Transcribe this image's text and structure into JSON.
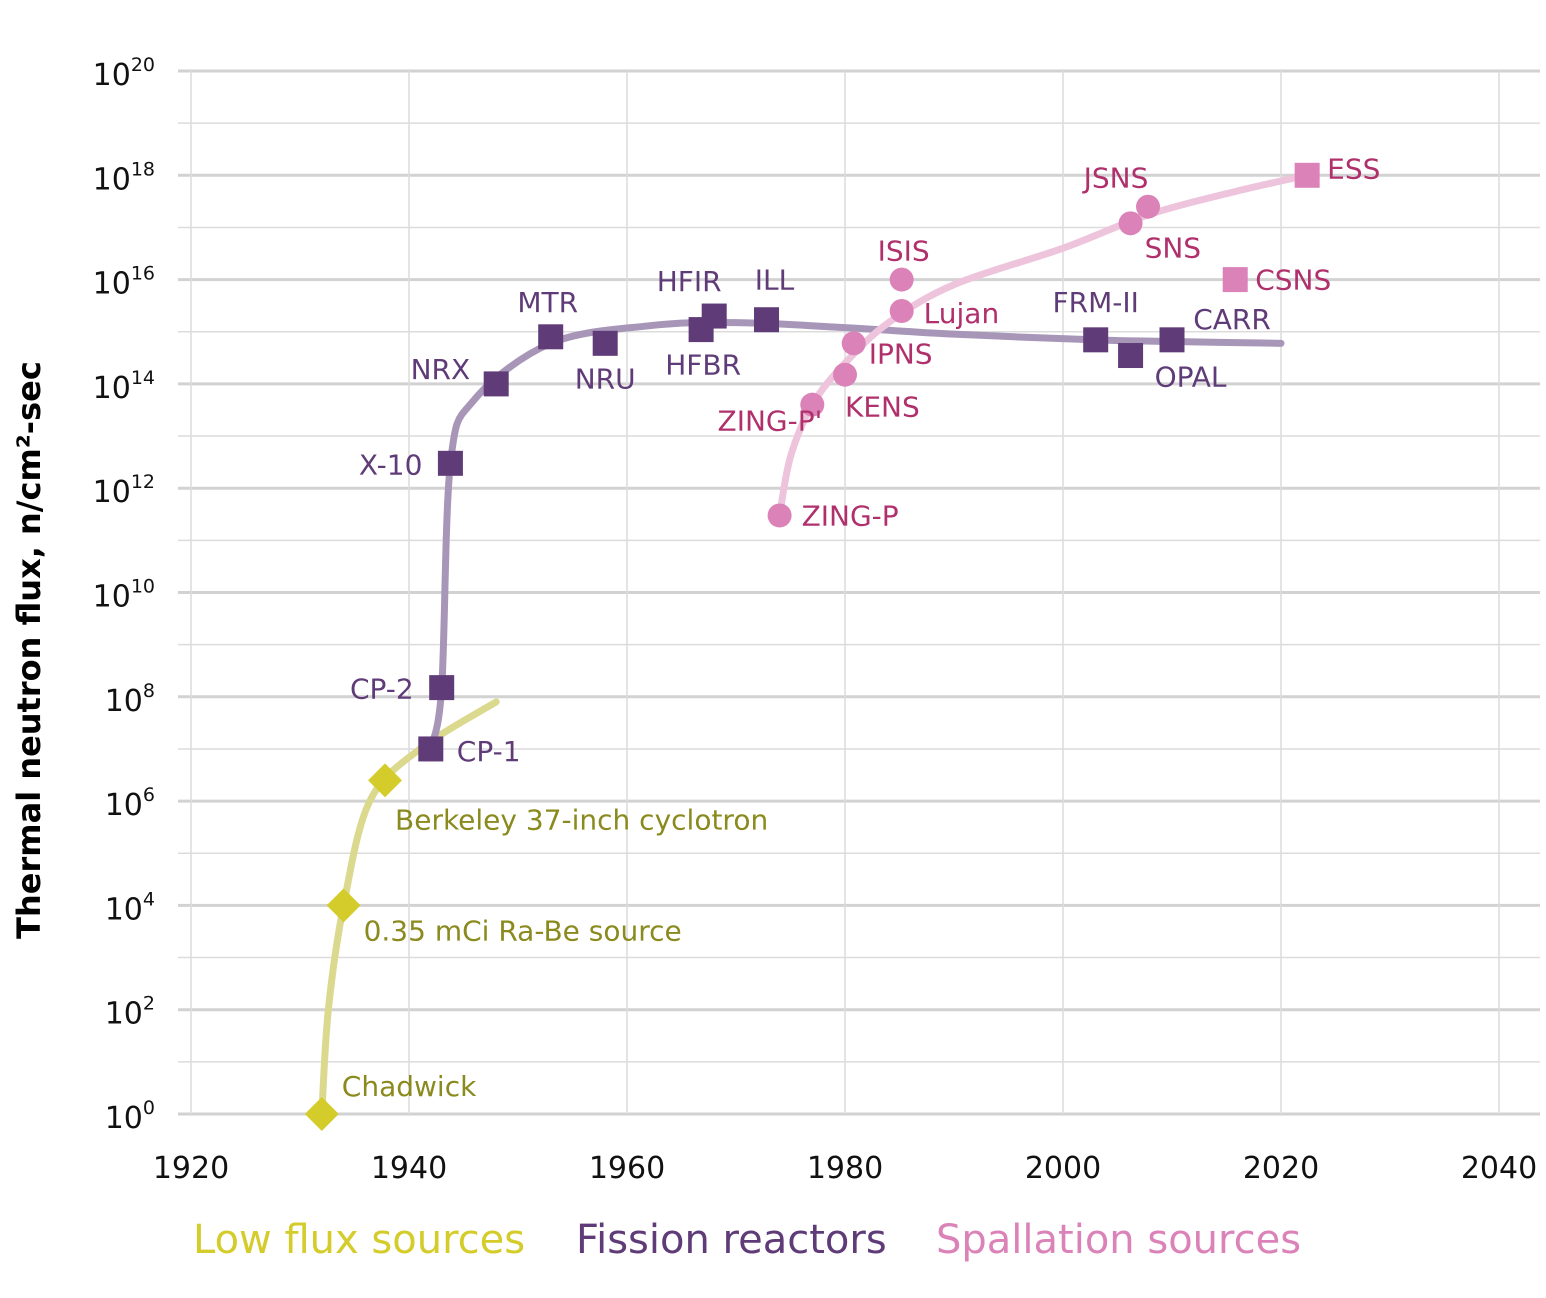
{
  "colors": {
    "low_flux": "#d4cc2a",
    "low_flux_curve": "#dbd98e",
    "low_flux_text": "#8a8a1e",
    "fission": "#5f3b78",
    "fission_curve": "#a896b8",
    "fission_text": "#5f3b78",
    "spallation": "#db83b8",
    "spallation_curve": "#eec4dc",
    "spallation_text": "#b0306c",
    "grid": "#dcdcdc",
    "grid_major": "#d2d2d2"
  },
  "chart_data": {
    "type": "scatter",
    "y_scale": "log",
    "xlim": [
      1917,
      2042
    ],
    "ylim_exponent": [
      0,
      20
    ],
    "x_ticks": [
      "1920",
      "1940",
      "1960",
      "1980",
      "2000",
      "2020",
      "2040"
    ],
    "y_ticks": [
      {
        "base": "10",
        "exp": "20"
      },
      {
        "base": "10",
        "exp": "18"
      },
      {
        "base": "10",
        "exp": "16"
      },
      {
        "base": "10",
        "exp": "14"
      },
      {
        "base": "10",
        "exp": "12"
      },
      {
        "base": "10",
        "exp": "10"
      },
      {
        "base": "10",
        "exp": "8"
      },
      {
        "base": "10",
        "exp": "6"
      },
      {
        "base": "10",
        "exp": "4"
      },
      {
        "base": "10",
        "exp": "2"
      },
      {
        "base": "10",
        "exp": "0"
      }
    ],
    "ylabel": "Thermal neutron flux, n/cm²-sec",
    "legend": [
      {
        "label": "Low flux sources",
        "color_key": "low_flux"
      },
      {
        "label": "Fission reactors",
        "color_key": "fission"
      },
      {
        "label": "Spallation sources",
        "color_key": "spallation"
      }
    ],
    "series": [
      {
        "group": "low_flux",
        "marker": "diamond",
        "points": [
          {
            "label": "Chadwick",
            "x": 1932,
            "y": 1
          },
          {
            "label": "0.35 mCi Ra-Be source",
            "x": 1934,
            "y": 10000.0
          },
          {
            "label": "Berkeley 37-inch cyclotron",
            "x": 1937.8,
            "y": 2500000.0
          }
        ],
        "curve": [
          [
            1932,
            1
          ],
          [
            1932.6,
            100.0
          ],
          [
            1934,
            10000.0
          ],
          [
            1936.4,
            1000000.0
          ],
          [
            1941,
            10000000.0
          ],
          [
            1948,
            80000000.0
          ]
        ]
      },
      {
        "group": "fission",
        "marker": "square",
        "points": [
          {
            "label": "CP-1",
            "x": 1942,
            "y": 10000000.0
          },
          {
            "label": "CP-2",
            "x": 1943,
            "y": 150000000.0
          },
          {
            "label": "X-10",
            "x": 1943.8,
            "y": 3000000000000.0
          },
          {
            "label": "NRX",
            "x": 1948,
            "y": 100000000000000.0
          },
          {
            "label": "MTR",
            "x": 1953,
            "y": 800000000000000.0
          },
          {
            "label": "NRU",
            "x": 1958,
            "y": 600000000000000.0
          },
          {
            "label": "HFBR",
            "x": 1966.8,
            "y": 1100000000000000.0
          },
          {
            "label": "HFIR",
            "x": 1968,
            "y": 2000000000000000.0
          },
          {
            "label": "ILL",
            "x": 1972.8,
            "y": 1700000000000000.0
          },
          {
            "label": "FRM-II",
            "x": 2003,
            "y": 700000000000000.0
          },
          {
            "label": "OPAL",
            "x": 2006.2,
            "y": 350000000000000.0
          },
          {
            "label": "CARR",
            "x": 2010,
            "y": 700000000000000.0
          }
        ],
        "curve": [
          [
            1942,
            10000000.0
          ],
          [
            1943,
            150000000.0
          ],
          [
            1943.8,
            3000000000000.0
          ],
          [
            1946,
            50000000000000.0
          ],
          [
            1953,
            600000000000000.0
          ],
          [
            1962,
            1300000000000000.0
          ],
          [
            1970,
            1500000000000000.0
          ],
          [
            1980,
            1200000000000000.0
          ],
          [
            1990,
            900000000000000.0
          ],
          [
            2003,
            700000000000000.0
          ],
          [
            2010,
            650000000000000.0
          ],
          [
            2020,
            600000000000000.0
          ]
        ]
      },
      {
        "group": "spallation",
        "marker": "circle",
        "points": [
          {
            "label": "ZING-P",
            "x": 1974,
            "y": 300000000000.0
          },
          {
            "label": "ZING-P'",
            "x": 1977,
            "y": 40000000000000.0
          },
          {
            "label": "KENS",
            "x": 1980,
            "y": 150000000000000.0
          },
          {
            "label": "IPNS",
            "x": 1980.8,
            "y": 600000000000000.0
          },
          {
            "label": "ISIS",
            "x": 1985.2,
            "y": 1e+16
          },
          {
            "label": "Lujan",
            "x": 1985.2,
            "y": 2500000000000000.0
          },
          {
            "label": "SNS",
            "x": 2006.2,
            "y": 1.2e+17
          },
          {
            "label": "JSNS",
            "x": 2007.8,
            "y": 2.5e+17
          }
        ],
        "squares": [
          {
            "label": "CSNS",
            "x": 2015.8,
            "y": 1e+16
          },
          {
            "label": "ESS",
            "x": 2022.4,
            "y": 1e+18
          }
        ],
        "curve": [
          [
            1974,
            300000000000.0
          ],
          [
            1975,
            4000000000000.0
          ],
          [
            1977,
            40000000000000.0
          ],
          [
            1980,
            250000000000000.0
          ],
          [
            1984,
            1500000000000000.0
          ],
          [
            1990,
            8000000000000000.0
          ],
          [
            2000,
            4e+16
          ],
          [
            2008,
            1.8e+17
          ],
          [
            2016,
            5e+17
          ],
          [
            2022.4,
            1e+18
          ]
        ]
      }
    ]
  }
}
